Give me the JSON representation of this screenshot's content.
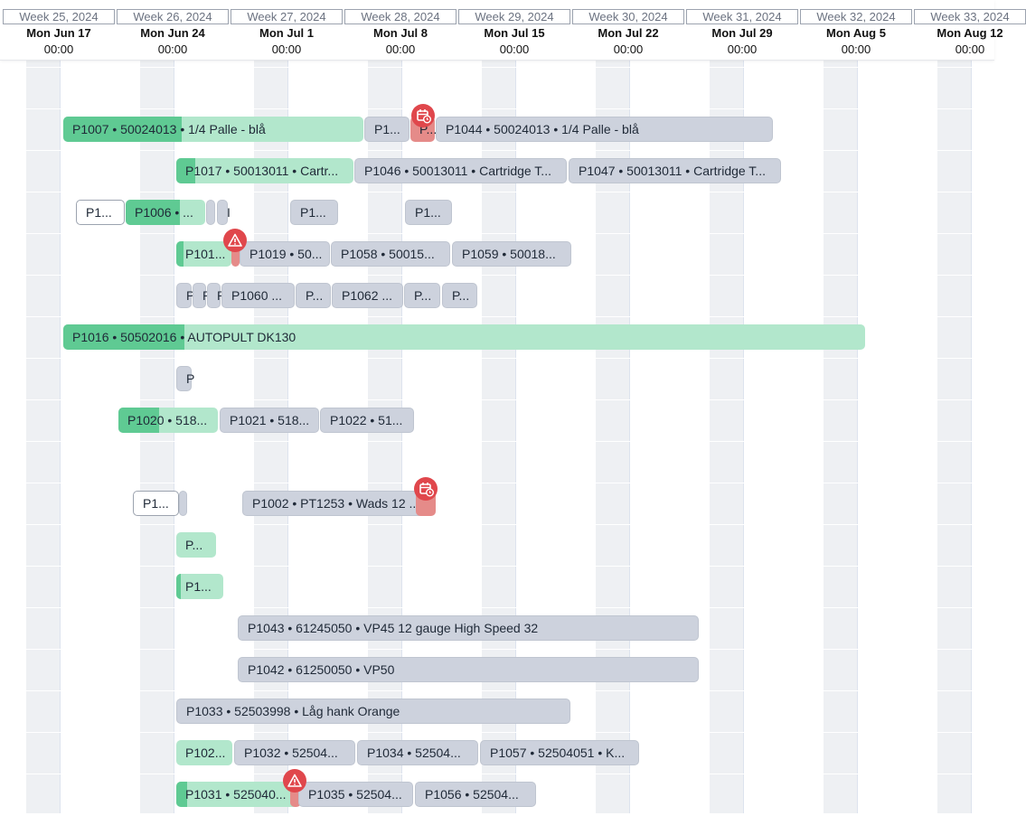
{
  "header": {
    "weeks": [
      {
        "week": "Week 25, 2024",
        "day": "Mon Jun 17",
        "time": "00:00"
      },
      {
        "week": "Week 26, 2024",
        "day": "Mon Jun 24",
        "time": "00:00"
      },
      {
        "week": "Week 27, 2024",
        "day": "Mon Jul 1",
        "time": "00:00"
      },
      {
        "week": "Week 28, 2024",
        "day": "Mon Jul 8",
        "time": "00:00"
      },
      {
        "week": "Week 29, 2024",
        "day": "Mon Jul 15",
        "time": "00:00"
      },
      {
        "week": "Week 30, 2024",
        "day": "Mon Jul 22",
        "time": "00:00"
      },
      {
        "week": "Week 31, 2024",
        "day": "Mon Jul 29",
        "time": "00:00"
      },
      {
        "week": "Week 32, 2024",
        "day": "Mon Aug 5",
        "time": "00:00"
      },
      {
        "week": "Week 33, 2024",
        "day": "Mon Aug 12",
        "time": "00:00"
      }
    ]
  },
  "rows": [
    {
      "tasks": [
        "P1007 • 50024013 • 1/4 Palle - blå",
        "P1...",
        "P...",
        "P1044 • 50024013 • 1/4 Palle - blå"
      ]
    },
    {
      "tasks": [
        "P1017 • 50013011 • Cartr...",
        "P1046 • 50013011 • Cartridge T...",
        "P1047 • 50013011 • Cartridge T..."
      ]
    },
    {
      "tasks": [
        "P1...",
        "P1006 • ...",
        "I",
        "P1...",
        "P1..."
      ]
    },
    {
      "tasks": [
        "P101...",
        "P1019 • 50...",
        "P1058 • 50015...",
        "P1059 • 50018..."
      ]
    },
    {
      "tasks": [
        "P",
        "P",
        "P",
        "P1060 ...",
        "P...",
        "P1062 ...",
        "P...",
        "P..."
      ]
    },
    {
      "tasks": [
        "P1016 • 50502016 • AUTOPULT DK130"
      ]
    },
    {
      "tasks": [
        "P"
      ]
    },
    {
      "tasks": [
        "P1020 • 518...",
        "P1021 • 518...",
        "P1022 • 51..."
      ]
    },
    {
      "tasks": [
        "P1...",
        "P1002 • PT1253 • Wads 12 ..."
      ]
    },
    {
      "tasks": [
        "P..."
      ]
    },
    {
      "tasks": [
        "P1..."
      ]
    },
    {
      "tasks": [
        "P1043 • 61245050 • VP45 12 gauge High Speed 32"
      ]
    },
    {
      "tasks": [
        "P1042 • 61250050 • VP50"
      ]
    },
    {
      "tasks": [
        "P1033 • 52503998 • Låg hank Orange"
      ]
    },
    {
      "tasks": [
        "P102...",
        "P1032 • 52504...",
        "P1034 • 52504...",
        "P1057 • 52504051 • K..."
      ]
    },
    {
      "tasks": [
        "P1031 • 525040...",
        "P1035 • 52504...",
        "P1056 • 52504..."
      ]
    }
  ]
}
